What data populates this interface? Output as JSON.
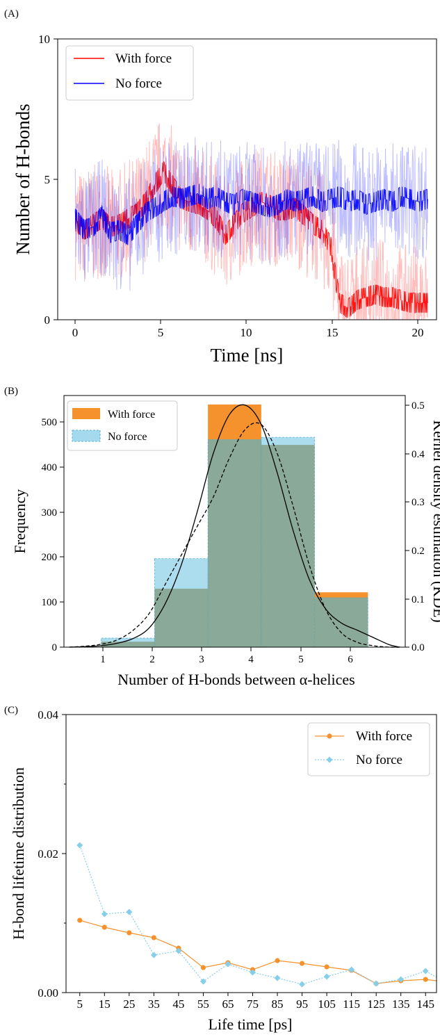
{
  "chart_data": [
    {
      "panel": "(A)",
      "type": "line",
      "xlabel": "Time [ns]",
      "ylabel": "Number of H-bonds",
      "xlim": [
        -1,
        20.5
      ],
      "ylim": [
        0,
        10
      ],
      "xticks": [
        "0",
        "5",
        "10",
        "15",
        "20"
      ],
      "yticks": [
        "0",
        "5",
        "10"
      ],
      "legend_position": "top-left",
      "series": [
        {
          "name": "With force",
          "color": "#ff0000",
          "x": [
            0,
            0.5,
            1,
            1.5,
            2,
            2.5,
            3,
            3.5,
            4,
            4.5,
            5,
            5.5,
            6,
            6.5,
            7,
            7.5,
            8,
            8.5,
            9,
            9.5,
            10,
            10.5,
            11,
            11.5,
            12,
            12.5,
            13,
            13.5,
            14,
            14.5,
            15,
            15.5,
            16,
            16.5,
            17,
            17.5,
            18,
            18.5,
            19,
            19.5,
            20
          ],
          "values": [
            3.5,
            3.2,
            3.4,
            3.6,
            3.3,
            3.4,
            3.6,
            3.8,
            4.2,
            4.8,
            5.3,
            4.8,
            4.3,
            4.2,
            4.1,
            3.9,
            3.6,
            3.0,
            3.4,
            3.8,
            4.0,
            4.2,
            4.1,
            3.9,
            3.9,
            4.0,
            3.7,
            3.4,
            3.2,
            2.6,
            0.6,
            0.4,
            0.7,
            0.8,
            0.9,
            0.8,
            0.8,
            0.7,
            0.6,
            0.6,
            0.6
          ]
        },
        {
          "name": "No force",
          "color": "#0000ff",
          "x": [
            0,
            0.5,
            1,
            1.5,
            2,
            2.5,
            3,
            3.5,
            4,
            4.5,
            5,
            5.5,
            6,
            6.5,
            7,
            7.5,
            8,
            8.5,
            9,
            9.5,
            10,
            10.5,
            11,
            11.5,
            12,
            12.5,
            13,
            13.5,
            14,
            14.5,
            15,
            15.5,
            16,
            16.5,
            17,
            17.5,
            18,
            18.5,
            19,
            19.5,
            20
          ],
          "values": [
            3.6,
            3.2,
            3.3,
            3.7,
            3.1,
            3.2,
            3.0,
            3.4,
            3.8,
            4.0,
            4.2,
            4.4,
            4.3,
            4.4,
            4.5,
            4.3,
            4.4,
            4.2,
            4.1,
            4.3,
            4.2,
            4.1,
            4.0,
            4.1,
            4.3,
            4.2,
            4.3,
            4.4,
            4.2,
            4.3,
            4.4,
            4.2,
            4.3,
            4.1,
            4.2,
            4.3,
            4.2,
            4.4,
            4.3,
            4.2,
            4.3
          ]
        }
      ]
    },
    {
      "panel": "(B)",
      "type": "bar",
      "xlabel": "Number of H-bonds between α-helices",
      "ylabel": "Frequency",
      "ylabel_right": "Kernel density estimation (KDE)",
      "xlim": [
        0.3,
        6.7
      ],
      "ylim": [
        0,
        560
      ],
      "ylim_right": [
        0,
        0.52
      ],
      "xticks": [
        "1",
        "2",
        "3",
        "4",
        "5",
        "6"
      ],
      "yticks": [
        "0",
        "100",
        "200",
        "300",
        "400",
        "500"
      ],
      "yticks_right": [
        "0.0",
        "0.1",
        "0.2",
        "0.3",
        "0.4",
        "0.5"
      ],
      "legend_position": "top-left",
      "bins": [
        [
          1,
          2
        ],
        [
          2,
          3
        ],
        [
          3,
          4
        ],
        [
          4,
          5
        ],
        [
          5,
          6
        ]
      ],
      "series": [
        {
          "name": "With force",
          "color": "#f5922e",
          "values": [
            12,
            130,
            540,
            450,
            122
          ]
        },
        {
          "name": "No force",
          "color": "#87cee8",
          "values": [
            20,
            197,
            462,
            467,
            110
          ]
        }
      ],
      "kde": [
        {
          "name": "With force",
          "style": "solid",
          "x": [
            0.4,
            0.7,
            1.0,
            1.3,
            1.6,
            1.9,
            2.2,
            2.5,
            2.8,
            3.1,
            3.4,
            3.7,
            4.0,
            4.3,
            4.6,
            4.9,
            5.2,
            5.5,
            5.8,
            6.1,
            6.4,
            6.6
          ],
          "values": [
            0.0,
            0.001,
            0.003,
            0.008,
            0.018,
            0.04,
            0.09,
            0.17,
            0.28,
            0.4,
            0.48,
            0.5,
            0.46,
            0.36,
            0.24,
            0.14,
            0.08,
            0.05,
            0.035,
            0.02,
            0.005,
            0.0
          ]
        },
        {
          "name": "No force",
          "style": "dashed",
          "x": [
            0.4,
            0.7,
            1.0,
            1.3,
            1.6,
            1.9,
            2.2,
            2.5,
            2.8,
            3.1,
            3.4,
            3.7,
            4.0,
            4.3,
            4.6,
            4.9,
            5.2,
            5.5,
            5.8,
            6.1,
            6.4,
            6.6
          ],
          "values": [
            0.0,
            0.002,
            0.006,
            0.015,
            0.035,
            0.07,
            0.13,
            0.19,
            0.25,
            0.31,
            0.39,
            0.45,
            0.46,
            0.4,
            0.29,
            0.17,
            0.08,
            0.03,
            0.01,
            0.003,
            0.0,
            0.0
          ]
        }
      ]
    },
    {
      "panel": "(C)",
      "type": "line",
      "xlabel": "Life time [ps]",
      "ylabel": "H-bond lifetime distribution",
      "ylim": [
        0,
        0.04
      ],
      "xticks": [
        "5",
        "15",
        "25",
        "35",
        "45",
        "55",
        "65",
        "75",
        "85",
        "95",
        "105",
        "115",
        "125",
        "135",
        "145"
      ],
      "yticks": [
        "0.00",
        "0.02",
        "0.04"
      ],
      "legend_position": "top-right",
      "series": [
        {
          "name": "With force",
          "color": "#f5922e",
          "marker": "circle",
          "x": [
            5,
            15,
            25,
            35,
            45,
            55,
            65,
            75,
            85,
            95,
            105,
            115,
            125,
            135,
            145
          ],
          "values": [
            0.0104,
            0.0094,
            0.0086,
            0.0079,
            0.0064,
            0.0036,
            0.0043,
            0.0033,
            0.0046,
            0.0042,
            0.0037,
            0.0032,
            0.0013,
            0.0017,
            0.0019
          ]
        },
        {
          "name": "No force",
          "color": "#87cee8",
          "marker": "diamond",
          "x": [
            5,
            15,
            25,
            35,
            45,
            55,
            65,
            75,
            85,
            95,
            105,
            115,
            125,
            135,
            145
          ],
          "values": [
            0.0212,
            0.0113,
            0.0116,
            0.0054,
            0.006,
            0.0016,
            0.0041,
            0.0029,
            0.0021,
            0.0012,
            0.0023,
            0.0033,
            0.0013,
            0.0019,
            0.0031
          ]
        }
      ]
    }
  ]
}
